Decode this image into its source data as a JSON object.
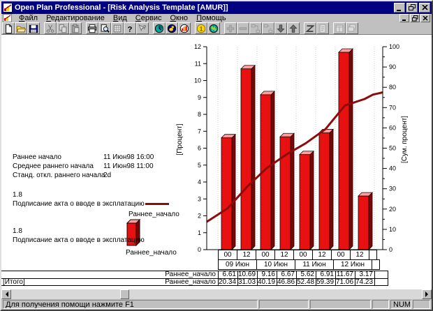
{
  "window": {
    "title": "Open Plan Professional - [Risk Analysis Template [AMUR]]"
  },
  "menu": {
    "items": [
      "Файл",
      "Редактирование",
      "Вид",
      "Сервис",
      "Окно",
      "Помощь"
    ]
  },
  "toolbar": {
    "groups": [
      [
        {
          "icon": "new-document-icon",
          "enabled": true
        },
        {
          "icon": "open-folder-icon",
          "enabled": true
        },
        {
          "icon": "save-icon",
          "enabled": true
        }
      ],
      [
        {
          "icon": "cut-icon",
          "enabled": false
        },
        {
          "icon": "copy-icon",
          "enabled": false
        },
        {
          "icon": "paste-icon",
          "enabled": false
        }
      ],
      [
        {
          "icon": "print-icon",
          "enabled": true
        },
        {
          "icon": "print-preview-icon",
          "enabled": true
        },
        {
          "icon": "table-view-icon",
          "enabled": false
        },
        {
          "icon": "help-icon",
          "enabled": true
        },
        {
          "icon": "context-help-icon",
          "enabled": false
        }
      ],
      [
        {
          "icon": "clock-icon",
          "enabled": true
        },
        {
          "icon": "resource-icon",
          "enabled": true
        },
        {
          "icon": "histogram-icon",
          "enabled": true
        }
      ],
      [
        {
          "icon": "cost-icon",
          "enabled": true
        },
        {
          "icon": "percent-icon",
          "enabled": true
        }
      ],
      [
        {
          "icon": "add-icon",
          "enabled": false
        },
        {
          "icon": "remove-icon",
          "enabled": false
        },
        {
          "icon": "link-icon",
          "enabled": false
        },
        {
          "icon": "unlink-icon",
          "enabled": false
        },
        {
          "icon": "move-down-icon",
          "enabled": true
        },
        {
          "icon": "move-up-icon",
          "enabled": true
        }
      ],
      [
        {
          "icon": "zigzag-icon",
          "enabled": true
        },
        {
          "icon": "notes-icon",
          "enabled": false
        }
      ],
      [
        {
          "icon": "window-tile-icon",
          "enabled": false
        },
        {
          "icon": "window-cascade-icon",
          "enabled": false
        }
      ]
    ]
  },
  "panel": {
    "stats": [
      {
        "label": "Раннее начало",
        "value": "11 Июн98 16:00"
      },
      {
        "label": "Среднее раннего начала",
        "value": "11 Июн98 11:00"
      },
      {
        "label": "Станд. откл.  раннего начала",
        "value": "2d"
      }
    ],
    "legend_line": {
      "value": "1.8",
      "activity": "Подписание акта о вводе в эксплатацию",
      "series": "Раннее_начало"
    },
    "legend_bar": {
      "value": "1.8",
      "activity": "Подписание акта о вводе в эксплатацию",
      "series": "Раннее_начало"
    }
  },
  "chart_data": {
    "type": "bar",
    "subtype": "risk histogram with cumulative line",
    "bins": {
      "hours": [
        "00",
        "12",
        "00",
        "12",
        "00",
        "12",
        "00",
        "12"
      ],
      "dates": [
        "09 Июн",
        "10 Июн",
        "11 Июн",
        "12 Июн"
      ]
    },
    "series": [
      {
        "name": "Раннее_начало",
        "type": "bar",
        "axis": "left",
        "values": [
          6.61,
          10.69,
          9.16,
          6.67,
          5.62,
          6.91,
          11.67,
          3.17
        ]
      },
      {
        "name": "Раннее_начало",
        "type": "line",
        "axis": "right",
        "values": [
          20.34,
          31.03,
          40.19,
          46.86,
          52.48,
          59.39,
          71.06,
          74.23
        ],
        "edge_start": 13.7,
        "edge_end": 77.5
      }
    ],
    "left_axis": {
      "label": "[Процент]",
      "min": 0,
      "max": 12,
      "step": 1
    },
    "right_axis": {
      "label": "[Сум. процент]",
      "min": 0,
      "max": 100,
      "step": 10,
      "minor_step": 5
    },
    "colors": {
      "bar_front": "#e81111",
      "bar_top": "#ff9f9f",
      "bar_side": "#7c0606",
      "line": "#8e0b0b"
    },
    "grid": "dotted vertical at bin boundaries",
    "legend_position": "left panel"
  },
  "table": {
    "rows": [
      {
        "corner": "",
        "label": "Раннее_начало",
        "values": [
          "6.61",
          "10.69",
          "9.16",
          "6.67",
          "5.62",
          "6.91",
          "11.67",
          "3.17"
        ]
      },
      {
        "corner": "[Итого]",
        "label": "Раннее_начало",
        "values": [
          "20.34",
          "31.03",
          "40.19",
          "46.86",
          "52.48",
          "59.39",
          "71.06",
          "74.23"
        ]
      }
    ]
  },
  "statusbar": {
    "message": "Для получения помощи нажмите F1",
    "num": "NUM"
  }
}
